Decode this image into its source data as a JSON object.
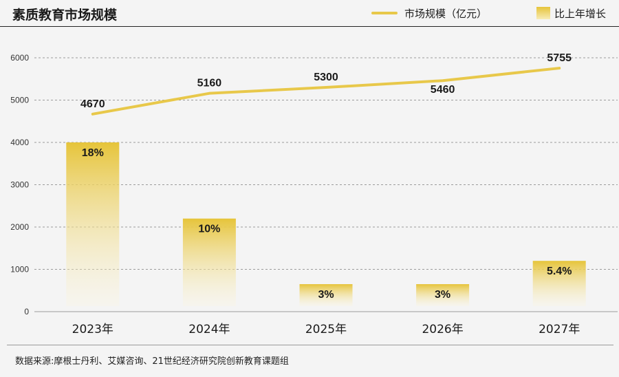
{
  "title": "素质教育市场规模",
  "legend": {
    "line_label": "市场规模（亿元）",
    "bar_label": "比上年增长"
  },
  "source": "数据来源:摩根士丹利、艾媒咨询、21世纪经济研究院创新教育课题组",
  "colors": {
    "line": "#e8c84a",
    "bar_top": "#e6c43a",
    "bar_bottom": "#fbf5dc",
    "grid": "#9a9a9a",
    "text": "#1a1a1a"
  },
  "chart_data": {
    "type": "bar+line",
    "categories": [
      "2023年",
      "2024年",
      "2025年",
      "2026年",
      "2027年"
    ],
    "series": [
      {
        "name": "市场规模（亿元）",
        "type": "line",
        "values": [
          4670,
          5160,
          5300,
          5460,
          5755
        ],
        "labels": [
          "4670",
          "5160",
          "5300",
          "5460",
          "5755"
        ]
      },
      {
        "name": "比上年增长",
        "type": "bar",
        "values": [
          18,
          10,
          3,
          3,
          5.4
        ],
        "labels": [
          "18%",
          "10%",
          "3%",
          "3%",
          "5.4%"
        ],
        "plotted_heights": [
          4000,
          2200,
          650,
          650,
          1200
        ]
      }
    ],
    "y_ticks": [
      "0",
      "1000",
      "2000",
      "3000",
      "4000",
      "5000",
      "6000"
    ],
    "ylim": [
      0,
      6000
    ],
    "grid": true,
    "legend_position": "top-right"
  }
}
